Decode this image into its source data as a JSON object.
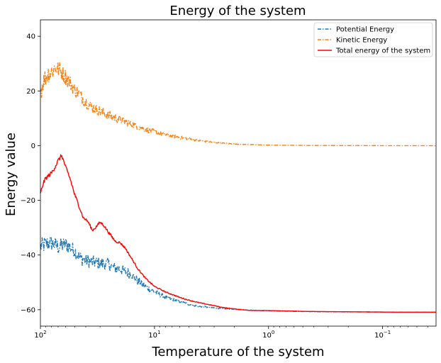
{
  "chart_data": {
    "type": "line",
    "title": "Energy of the system",
    "xlabel": "Temperature of the system",
    "ylabel": "Energy value",
    "xscale": "log",
    "x_inverted": true,
    "xlim": [
      100,
      0.034
    ],
    "ylim": [
      -66,
      46
    ],
    "grid": false,
    "legend_placement": "top-right",
    "x_ticks": [
      {
        "value": 100,
        "base": "10",
        "exp": "2"
      },
      {
        "value": 10,
        "base": "10",
        "exp": "1"
      },
      {
        "value": 1,
        "base": "10",
        "exp": "0"
      },
      {
        "value": 0.1,
        "base": "10",
        "exp": "−1"
      }
    ],
    "y_ticks": [
      {
        "value": 40,
        "label": "40"
      },
      {
        "value": 20,
        "label": "20"
      },
      {
        "value": 0,
        "label": "0"
      },
      {
        "value": -20,
        "label": "−20"
      },
      {
        "value": -40,
        "label": "−40"
      },
      {
        "value": -60,
        "label": "−60"
      }
    ],
    "series": [
      {
        "name": "Potential Energy",
        "color": "#1f77b4",
        "dash": "dashdot",
        "x": [
          100,
          90,
          80,
          70,
          60,
          50,
          45,
          40,
          35,
          30,
          25,
          22,
          20,
          18,
          16,
          14,
          12,
          10,
          8,
          6,
          5,
          4,
          3,
          2.5,
          2,
          1.5,
          1.2,
          1,
          0.8,
          0.6,
          0.5,
          0.4,
          0.3,
          0.2,
          0.15,
          0.1,
          0.07,
          0.05,
          0.034
        ],
        "y": [
          -37,
          -36,
          -35.5,
          -37,
          -36,
          -38.5,
          -41,
          -42,
          -42.5,
          -43,
          -43.5,
          -45,
          -45,
          -46,
          -47,
          -49.5,
          -51.5,
          -53.5,
          -55.5,
          -57,
          -58,
          -58.8,
          -59.3,
          -59.6,
          -59.8,
          -60.1,
          -60.3,
          -60.4,
          -60.5,
          -60.6,
          -60.65,
          -60.7,
          -60.75,
          -60.8,
          -60.8,
          -60.85,
          -60.9,
          -60.9,
          -60.9
        ],
        "noise": [
          6,
          6,
          6,
          6,
          5.5,
          5,
          5,
          5,
          4.5,
          4.5,
          4.5,
          4,
          4,
          4,
          3.5,
          3,
          2.5,
          2,
          1.5,
          1,
          0.8,
          0.6,
          0.5,
          0.4,
          0.3,
          0.2,
          0.15,
          0.1,
          0.1,
          0.05,
          0.05,
          0.05,
          0,
          0,
          0,
          0,
          0,
          0,
          0
        ]
      },
      {
        "name": "Kinetic Energy",
        "color": "#ff7f0e",
        "dash": "dashdot",
        "x": [
          100,
          95,
          90,
          85,
          80,
          75,
          70,
          65,
          60,
          55,
          50,
          45,
          40,
          35,
          30,
          25,
          20,
          15,
          12,
          10,
          8,
          6,
          5,
          4,
          3,
          2.5,
          2,
          1.5,
          1.2,
          1,
          0.8,
          0.5,
          0.3,
          0.2,
          0.1,
          0.05,
          0.034
        ],
        "y": [
          20,
          23,
          25,
          26.5,
          27,
          28.5,
          28,
          27,
          25,
          23,
          20.5,
          18.5,
          16,
          14,
          12.5,
          11,
          9.5,
          7.5,
          6,
          5,
          4,
          3,
          2.5,
          1.8,
          1.2,
          0.9,
          0.6,
          0.4,
          0.3,
          0.2,
          0.15,
          0.08,
          0.05,
          0.03,
          0.01,
          0,
          0
        ],
        "noise": [
          8,
          8,
          7,
          7,
          7,
          7,
          6.5,
          6,
          6,
          5.5,
          5,
          5,
          4.5,
          4,
          4,
          3.5,
          3,
          2.5,
          2,
          2,
          1.6,
          1.2,
          1,
          0.8,
          0.5,
          0.4,
          0.3,
          0.2,
          0.1,
          0.1,
          0.05,
          0,
          0,
          0,
          0,
          0,
          0
        ]
      },
      {
        "name": "Total energy of the system",
        "color": "#ff0000",
        "dash": "solid",
        "x": [
          100,
          95,
          90,
          85,
          80,
          75,
          70,
          65,
          60,
          55,
          50,
          45,
          42,
          40,
          38,
          35,
          33,
          30,
          28,
          25,
          23,
          22,
          20,
          18,
          16,
          14,
          12,
          10,
          8,
          6,
          5,
          4,
          3,
          2.5,
          2,
          1.5,
          1.2,
          1,
          0.8,
          0.6,
          0.5,
          0.4,
          0.3,
          0.2,
          0.15,
          0.1,
          0.07,
          0.05,
          0.034
        ],
        "y": [
          -18,
          -14,
          -12,
          -11,
          -10,
          -8,
          -5.5,
          -3.5,
          -8,
          -12,
          -18,
          -23,
          -26.5,
          -27,
          -28,
          -31,
          -30,
          -28,
          -29,
          -32,
          -34,
          -35,
          -35.5,
          -37.5,
          -41,
          -45,
          -48.5,
          -51.5,
          -53.5,
          -55.5,
          -56.5,
          -57.5,
          -58.5,
          -59.2,
          -59.7,
          -60.2,
          -60.3,
          -60.3,
          -60.4,
          -60.5,
          -60.6,
          -60.65,
          -60.7,
          -60.75,
          -60.8,
          -60.85,
          -60.9,
          -60.9,
          -60.9
        ],
        "noise": [
          2,
          1.5,
          1.5,
          1.5,
          1.5,
          1.5,
          1.5,
          1.5,
          1.5,
          1.5,
          1.5,
          1.2,
          1.2,
          1,
          1,
          1,
          1,
          1,
          1,
          1,
          1,
          0.8,
          0.8,
          0.8,
          0.7,
          0.6,
          0.5,
          0.5,
          0.4,
          0.4,
          0.3,
          0.3,
          0.2,
          0.2,
          0.15,
          0.1,
          0.1,
          0.05,
          0.05,
          0.05,
          0,
          0,
          0,
          0,
          0,
          0,
          0,
          0,
          0
        ]
      }
    ]
  }
}
